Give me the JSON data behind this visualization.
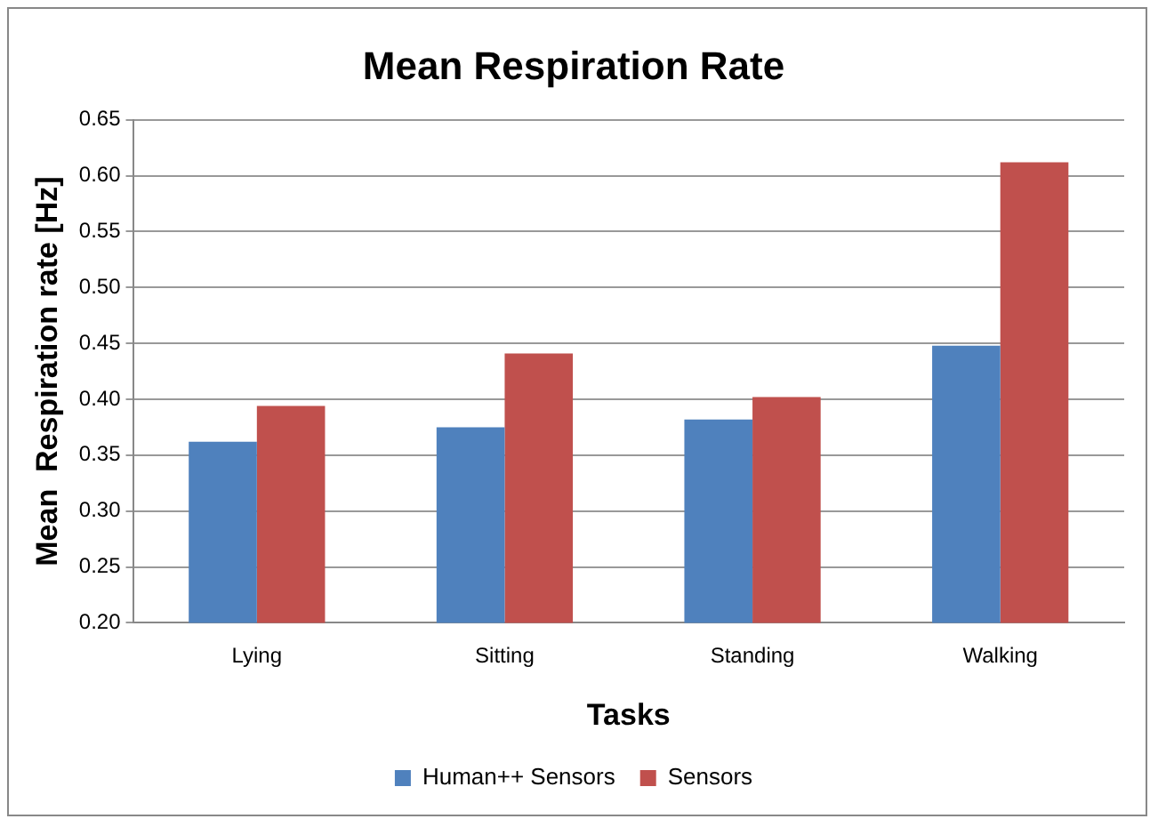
{
  "chart_data": {
    "type": "bar",
    "title": "Mean Respiration Rate",
    "xlabel": "Tasks",
    "ylabel": "Mean  Respiration rate [Hz]",
    "categories": [
      "Lying",
      "Sitting",
      "Standing",
      "Walking"
    ],
    "series": [
      {
        "name": "Human++ Sensors",
        "color": "#4f81bd",
        "values": [
          0.362,
          0.375,
          0.382,
          0.448
        ]
      },
      {
        "name": "Sensors",
        "color": "#c0504d",
        "values": [
          0.394,
          0.441,
          0.402,
          0.612
        ]
      }
    ],
    "ylim": [
      0.2,
      0.65
    ],
    "yticks": [
      {
        "value": 0.2,
        "label": "0.20"
      },
      {
        "value": 0.25,
        "label": "0.25"
      },
      {
        "value": 0.3,
        "label": "0.30"
      },
      {
        "value": 0.35,
        "label": "0.35"
      },
      {
        "value": 0.4,
        "label": "0.40"
      },
      {
        "value": 0.45,
        "label": "0.45"
      },
      {
        "value": 0.5,
        "label": "0.50"
      },
      {
        "value": 0.55,
        "label": "0.55"
      },
      {
        "value": 0.6,
        "label": "0.60"
      },
      {
        "value": 0.65,
        "label": "0.65"
      }
    ],
    "grid": "y",
    "legend": "bottom"
  }
}
